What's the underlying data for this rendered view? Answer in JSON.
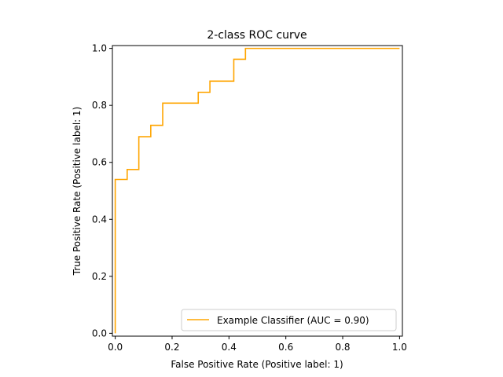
{
  "chart_data": {
    "type": "line",
    "title": "2-class ROC curve",
    "xlabel": "False Positive Rate (Positive label: 1)",
    "ylabel": "True Positive Rate (Positive label: 1)",
    "xlim": [
      -0.01,
      1.01
    ],
    "ylim": [
      -0.01,
      1.01
    ],
    "x_ticks": [
      0.0,
      0.2,
      0.4,
      0.6,
      0.8,
      1.0
    ],
    "y_ticks": [
      0.0,
      0.2,
      0.4,
      0.6,
      0.8,
      1.0
    ],
    "x_tick_labels": [
      "0.0",
      "0.2",
      "0.4",
      "0.6",
      "0.8",
      "1.0"
    ],
    "y_tick_labels": [
      "0.0",
      "0.2",
      "0.4",
      "0.6",
      "0.8",
      "1.0"
    ],
    "grid": false,
    "legend_position": "lower-right",
    "series": [
      {
        "name": "Example Classifier (AUC = 0.90)",
        "color": "#ffa500",
        "step": true,
        "x": [
          0.0,
          0.0,
          0.042,
          0.042,
          0.083,
          0.083,
          0.125,
          0.125,
          0.167,
          0.167,
          0.292,
          0.292,
          0.333,
          0.333,
          0.417,
          0.417,
          0.458,
          0.458,
          1.0
        ],
        "y": [
          0.0,
          0.54,
          0.54,
          0.575,
          0.575,
          0.69,
          0.69,
          0.73,
          0.73,
          0.808,
          0.808,
          0.846,
          0.846,
          0.885,
          0.885,
          0.962,
          0.962,
          1.0,
          1.0
        ]
      }
    ]
  }
}
